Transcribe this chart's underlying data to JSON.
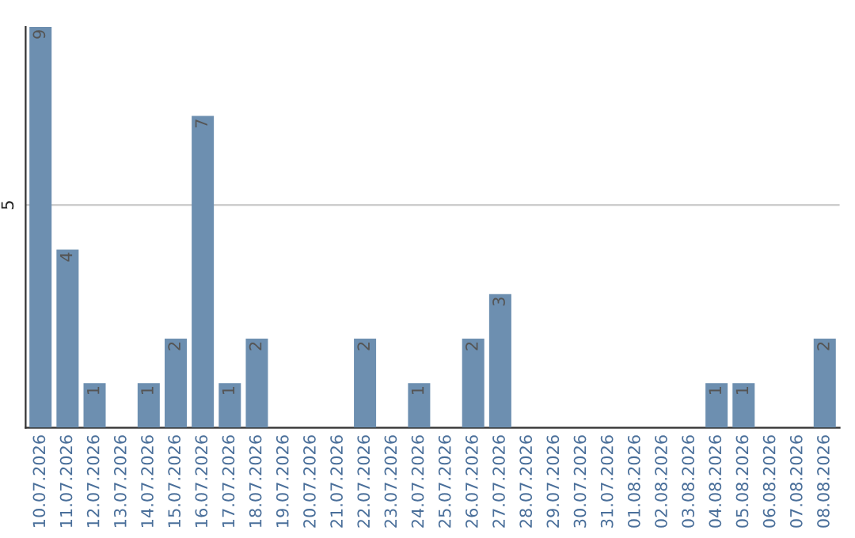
{
  "chart_data": {
    "type": "bar",
    "categories": [
      "10.07.2026",
      "11.07.2026",
      "12.07.2026",
      "13.07.2026",
      "14.07.2026",
      "15.07.2026",
      "16.07.2026",
      "17.07.2026",
      "18.07.2026",
      "19.07.2026",
      "20.07.2026",
      "21.07.2026",
      "22.07.2026",
      "23.07.2026",
      "24.07.2026",
      "25.07.2026",
      "26.07.2026",
      "27.07.2026",
      "28.07.2026",
      "29.07.2026",
      "30.07.2026",
      "31.07.2026",
      "01.08.2026",
      "02.08.2026",
      "03.08.2026",
      "04.08.2026",
      "05.08.2026",
      "06.08.2026",
      "07.08.2026",
      "08.08.2026"
    ],
    "values": [
      9,
      4,
      1,
      0,
      1,
      2,
      7,
      1,
      2,
      0,
      0,
      0,
      2,
      0,
      1,
      0,
      2,
      3,
      0,
      0,
      0,
      0,
      0,
      0,
      0,
      1,
      1,
      0,
      0,
      2
    ],
    "value_labels": [
      "9",
      "4",
      "1",
      null,
      "1",
      "2",
      "7",
      "1",
      "2",
      null,
      null,
      null,
      "2",
      null,
      "1",
      null,
      "2",
      "3",
      null,
      null,
      null,
      null,
      null,
      null,
      null,
      "1",
      "1",
      null,
      null,
      "2"
    ],
    "color": "#6d8fb0",
    "ylim": [
      0,
      9
    ],
    "yticks": [
      5
    ],
    "grid": "y"
  }
}
